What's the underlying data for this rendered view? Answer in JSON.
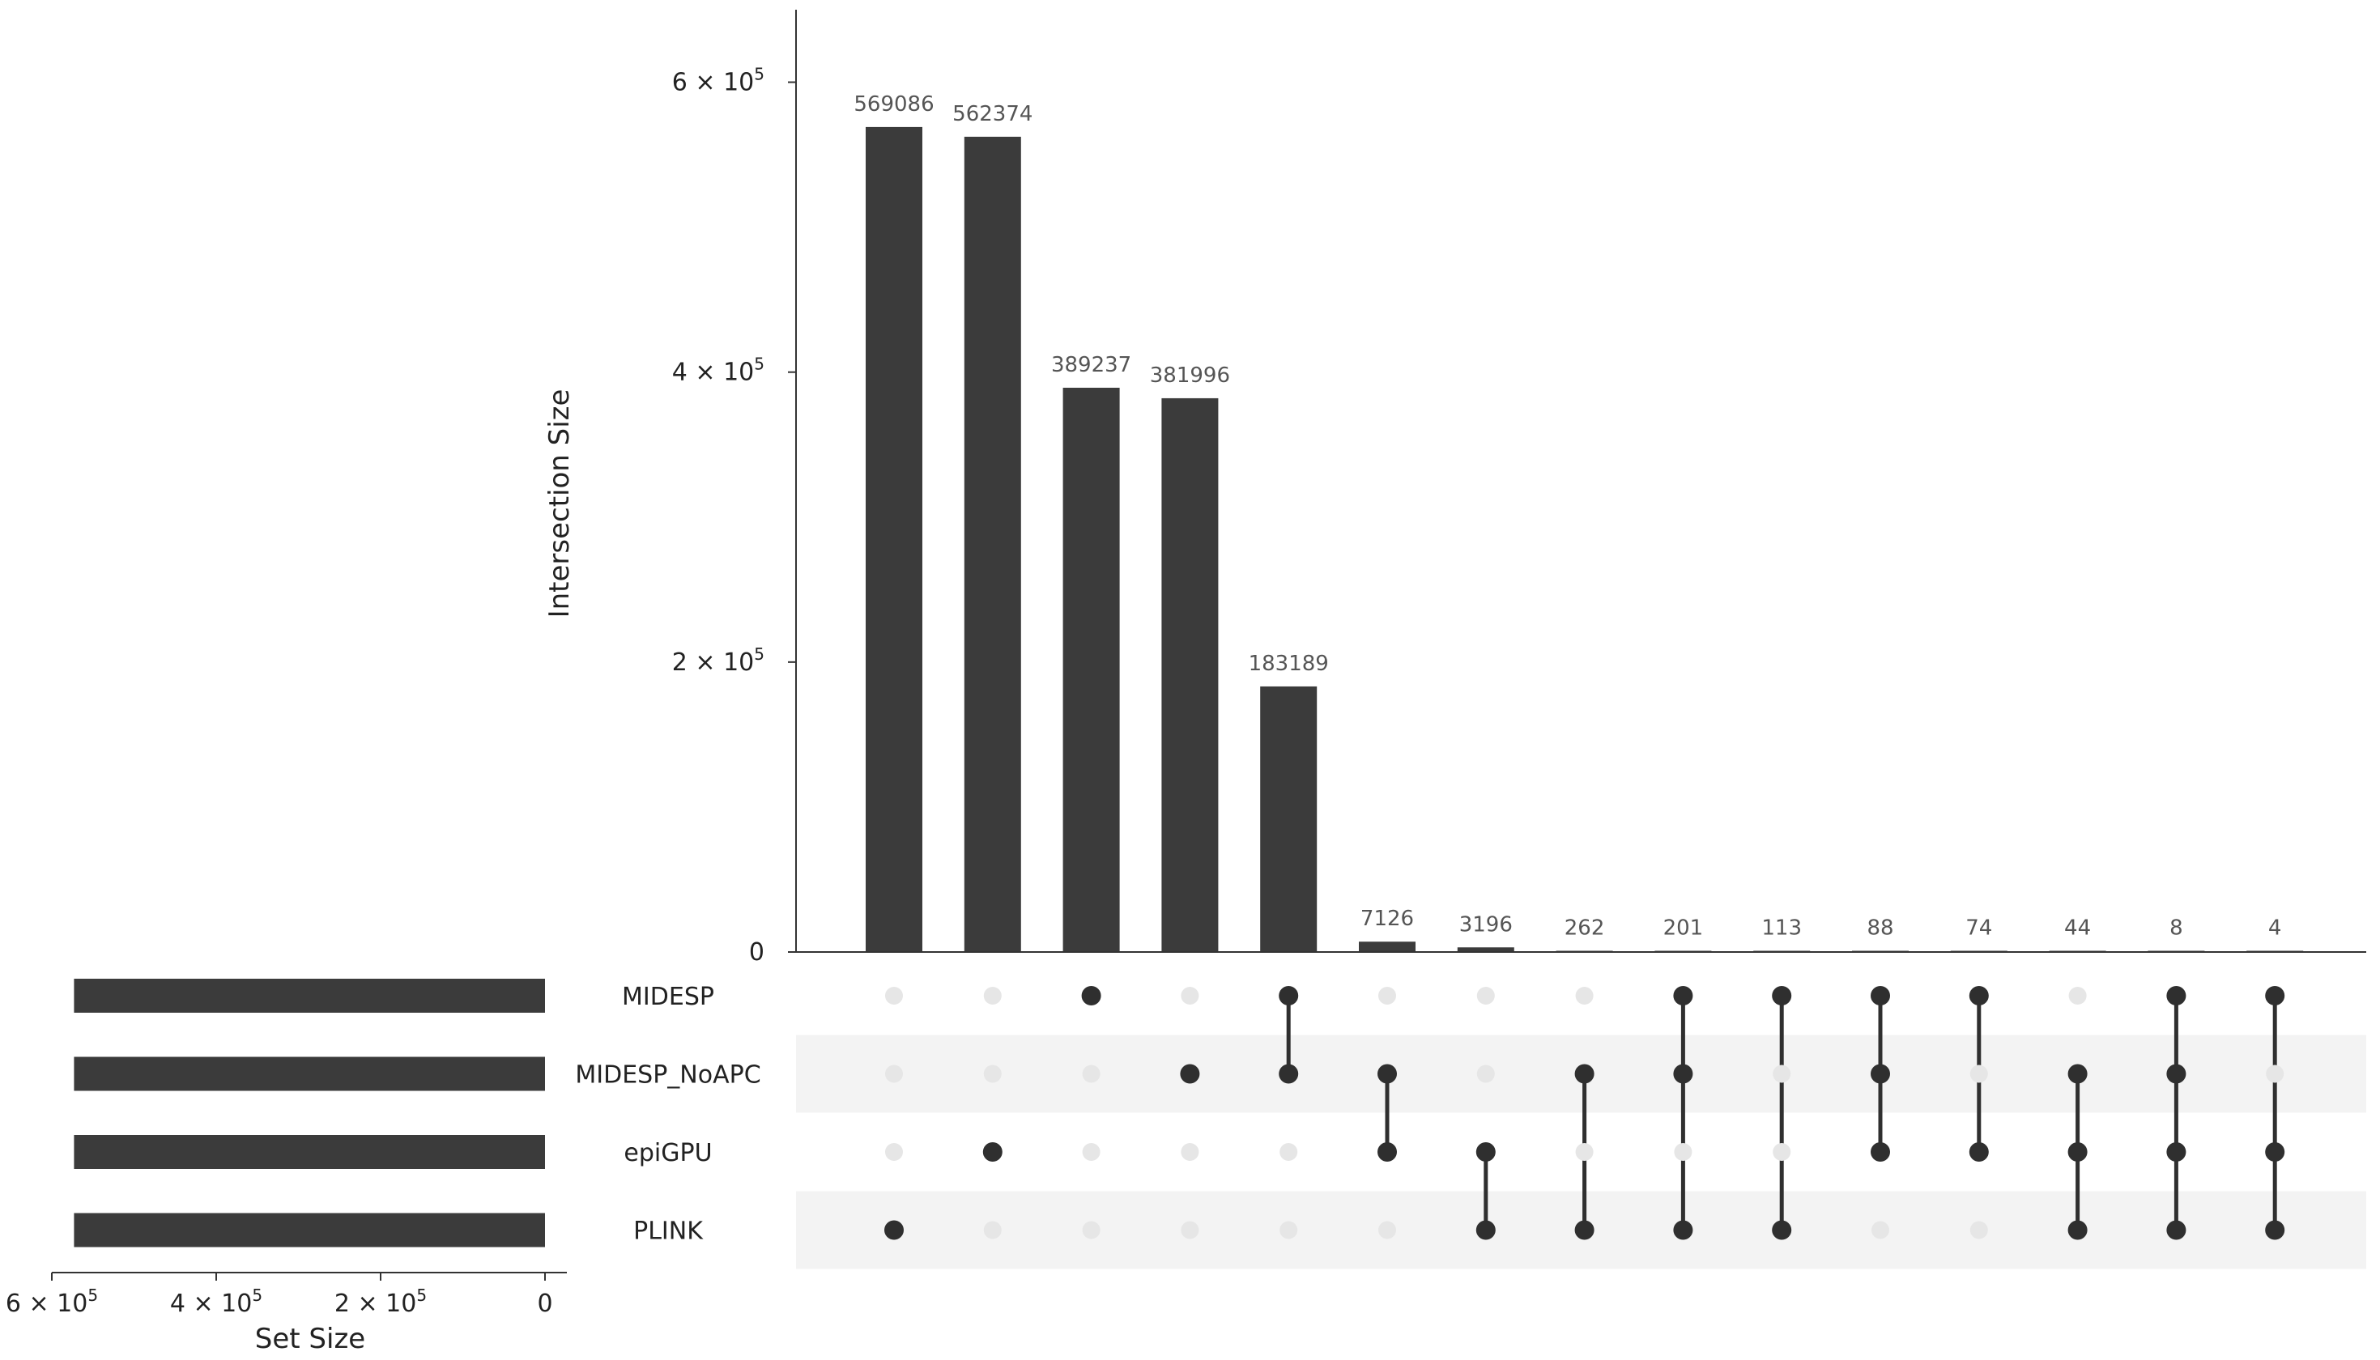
{
  "chart_data": {
    "type": "upset",
    "sets": [
      "MIDESP",
      "MIDESP_NoAPC",
      "epiGPU",
      "PLINK"
    ],
    "intersections": [
      {
        "value": 569086,
        "members": [
          "PLINK"
        ]
      },
      {
        "value": 562374,
        "members": [
          "epiGPU"
        ]
      },
      {
        "value": 389237,
        "members": [
          "MIDESP"
        ]
      },
      {
        "value": 381996,
        "members": [
          "MIDESP_NoAPC"
        ]
      },
      {
        "value": 183189,
        "members": [
          "MIDESP",
          "MIDESP_NoAPC"
        ]
      },
      {
        "value": 7126,
        "members": [
          "MIDESP_NoAPC",
          "epiGPU"
        ]
      },
      {
        "value": 3196,
        "members": [
          "epiGPU",
          "PLINK"
        ]
      },
      {
        "value": 262,
        "members": [
          "MIDESP_NoAPC",
          "PLINK"
        ]
      },
      {
        "value": 201,
        "members": [
          "MIDESP",
          "MIDESP_NoAPC",
          "PLINK"
        ]
      },
      {
        "value": 113,
        "members": [
          "MIDESP",
          "PLINK"
        ]
      },
      {
        "value": 88,
        "members": [
          "MIDESP",
          "MIDESP_NoAPC",
          "epiGPU"
        ]
      },
      {
        "value": 74,
        "members": [
          "MIDESP",
          "epiGPU"
        ]
      },
      {
        "value": 44,
        "members": [
          "MIDESP_NoAPC",
          "epiGPU",
          "PLINK"
        ]
      },
      {
        "value": 8,
        "members": [
          "MIDESP",
          "MIDESP_NoAPC",
          "epiGPU",
          "PLINK"
        ]
      },
      {
        "value": 4,
        "members": [
          "MIDESP",
          "epiGPU",
          "PLINK"
        ]
      }
    ],
    "set_sizes": [
      573000,
      573000,
      573000,
      573000
    ],
    "intersection_axis": {
      "title": "Intersection Size",
      "ylim": [
        0,
        650000
      ],
      "ticks": [
        {
          "value": 0,
          "label": "0",
          "exp": ""
        },
        {
          "value": 200000,
          "label": "2 × 10",
          "exp": "5"
        },
        {
          "value": 400000,
          "label": "4 × 10",
          "exp": "5"
        },
        {
          "value": 600000,
          "label": "6 × 10",
          "exp": "5"
        }
      ]
    },
    "set_axis": {
      "title": "Set Size",
      "xlim": [
        0,
        600000
      ],
      "reversed": true,
      "ticks": [
        {
          "value": 600000,
          "label": "6 × 10",
          "exp": "5"
        },
        {
          "value": 400000,
          "label": "4 × 10",
          "exp": "5"
        },
        {
          "value": 200000,
          "label": "2 × 10",
          "exp": "5"
        },
        {
          "value": 0,
          "label": "0",
          "exp": ""
        }
      ]
    },
    "colors": {
      "bar": "#3b3b3b",
      "dot_active": "#2f2f2f",
      "dot_inactive": "#e6e6e6",
      "stripe": "#f3f3f3"
    }
  }
}
